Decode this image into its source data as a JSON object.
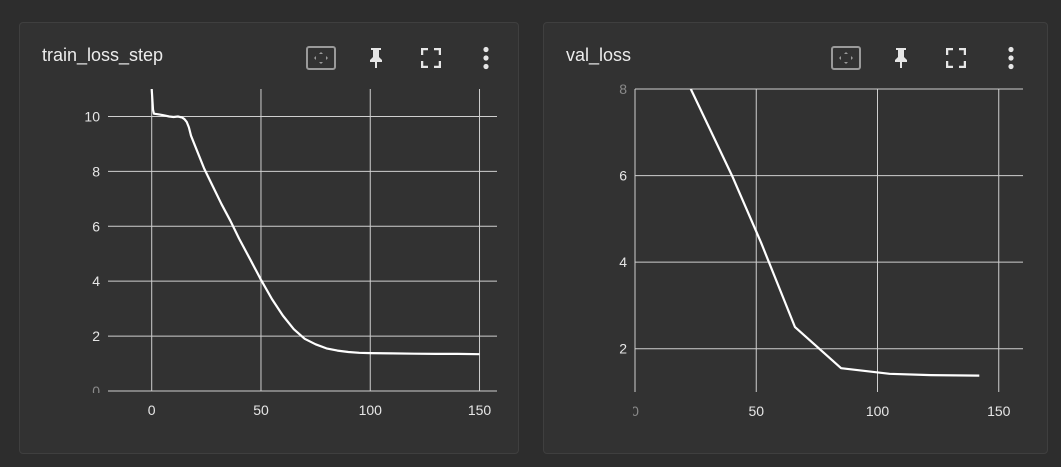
{
  "colors": {
    "background": "#2d2d2d",
    "card": "#323232",
    "line": "#ffffff",
    "grid": "#cfcfcf",
    "text": "#e6e6e6"
  },
  "toolbar_icons": [
    "fit-domain-icon",
    "pin-icon",
    "fullscreen-icon",
    "more-vert-icon"
  ],
  "chart_data": [
    {
      "title": "train_loss_step",
      "type": "line",
      "xlim": [
        -20,
        158
      ],
      "ylim": [
        0,
        11
      ],
      "xticks": [
        0,
        50,
        100,
        150
      ],
      "yticks": [
        0,
        2,
        4,
        6,
        8,
        10
      ],
      "xtick_labels": [
        "0",
        "50",
        "100",
        "150"
      ],
      "ytick_labels": [
        "0",
        "2",
        "4",
        "6",
        "8",
        "10"
      ],
      "grid": true,
      "series": [
        {
          "x": [
            0,
            0.3,
            0.6,
            1,
            3,
            5,
            8,
            10,
            12,
            14,
            15,
            16,
            17,
            18,
            20,
            24,
            28,
            32,
            36,
            40,
            45,
            50,
            55,
            60,
            65,
            70,
            75,
            80,
            85,
            90,
            95,
            100,
            110,
            120,
            130,
            140,
            150
          ],
          "y": [
            11.0,
            10.6,
            10.25,
            10.1,
            10.08,
            10.05,
            10.0,
            9.98,
            10.0,
            9.96,
            9.9,
            9.8,
            9.6,
            9.3,
            8.9,
            8.1,
            7.45,
            6.8,
            6.2,
            5.55,
            4.8,
            4.05,
            3.35,
            2.75,
            2.25,
            1.9,
            1.7,
            1.55,
            1.47,
            1.42,
            1.39,
            1.38,
            1.37,
            1.36,
            1.35,
            1.35,
            1.34
          ]
        }
      ]
    },
    {
      "title": "val_loss",
      "type": "line",
      "xlim": [
        0,
        160
      ],
      "ylim": [
        1,
        8
      ],
      "xticks": [
        0,
        50,
        100,
        150
      ],
      "yticks": [
        2,
        4,
        6,
        8
      ],
      "xtick_labels": [
        "0",
        "50",
        "100",
        "150"
      ],
      "ytick_labels": [
        "2",
        "4",
        "6",
        "8"
      ],
      "grid": true,
      "series": [
        {
          "x": [
            23,
            40,
            52,
            66,
            85,
            105,
            122,
            142
          ],
          "y": [
            8.0,
            6.0,
            4.45,
            2.5,
            1.55,
            1.42,
            1.39,
            1.38
          ]
        }
      ]
    }
  ]
}
